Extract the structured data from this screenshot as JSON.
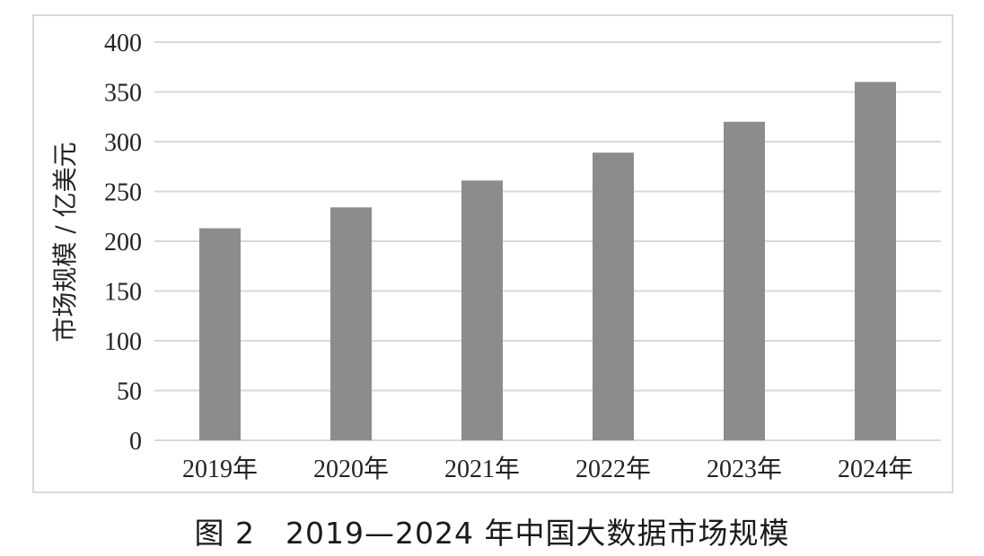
{
  "chart_data": {
    "type": "bar",
    "title": "",
    "xlabel": "",
    "ylabel": "市场规模 / 亿美元",
    "categories": [
      "2019年",
      "2020年",
      "2021年",
      "2022年",
      "2023年",
      "2024年"
    ],
    "values": [
      213,
      234,
      261,
      289,
      320,
      360
    ],
    "ylim": [
      0,
      400
    ],
    "yticks": [
      0,
      50,
      100,
      150,
      200,
      250,
      300,
      350,
      400
    ],
    "grid": true,
    "legend": "none",
    "bar_color": "#8c8c8c",
    "grid_color": "#d9d9d9"
  },
  "caption": "图 2　2019—2024 年中国大数据市场规模"
}
